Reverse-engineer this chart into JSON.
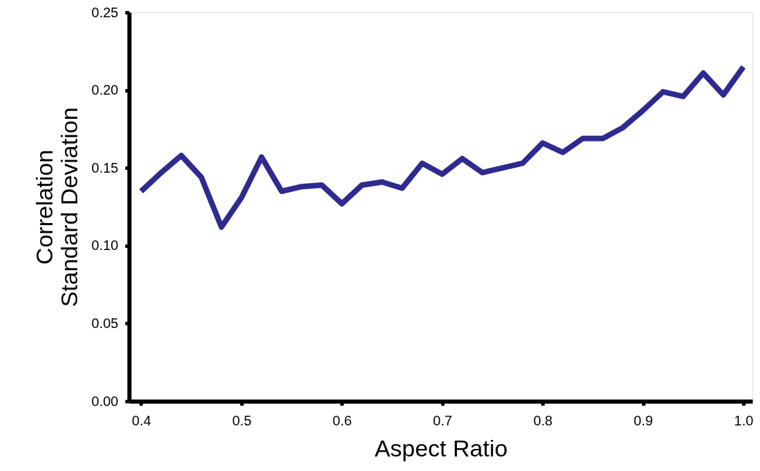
{
  "chart_data": {
    "type": "line",
    "xlabel": "Aspect Ratio",
    "ylabel": "Correlation\nStandard Deviation",
    "x": [
      0.4,
      0.42,
      0.44,
      0.46,
      0.48,
      0.5,
      0.52,
      0.54,
      0.56,
      0.58,
      0.6,
      0.62,
      0.64,
      0.66,
      0.68,
      0.7,
      0.72,
      0.74,
      0.76,
      0.78,
      0.8,
      0.82,
      0.84,
      0.86,
      0.88,
      0.9,
      0.92,
      0.94,
      0.96,
      0.98,
      1.0
    ],
    "series": [
      {
        "color": "#2e2a8f",
        "values": [
          0.135,
          0.147,
          0.158,
          0.144,
          0.112,
          0.131,
          0.157,
          0.135,
          0.138,
          0.139,
          0.127,
          0.139,
          0.141,
          0.137,
          0.153,
          0.146,
          0.156,
          0.147,
          0.15,
          0.153,
          0.166,
          0.16,
          0.169,
          0.169,
          0.176,
          0.187,
          0.199,
          0.196,
          0.211,
          0.197,
          0.215
        ]
      }
    ],
    "xlim": [
      0.388,
      1.009
    ],
    "xticks": [
      0.4,
      0.5,
      0.6,
      0.7,
      0.8,
      0.9,
      {
        "value": 1.0,
        "label": "1.0"
      }
    ],
    "ylim": [
      0,
      0.25
    ],
    "yticks": [
      {
        "value": 0,
        "label": "0.00"
      },
      {
        "value": 0.05,
        "label": "0.05"
      },
      {
        "value": 0.1,
        "label": "0.10"
      },
      {
        "value": 0.15,
        "label": "0.15"
      },
      {
        "value": 0.2,
        "label": "0.20"
      },
      {
        "value": 0.25,
        "label": "0.25"
      }
    ],
    "grid": false,
    "marker": "none",
    "line_style": "solid"
  }
}
